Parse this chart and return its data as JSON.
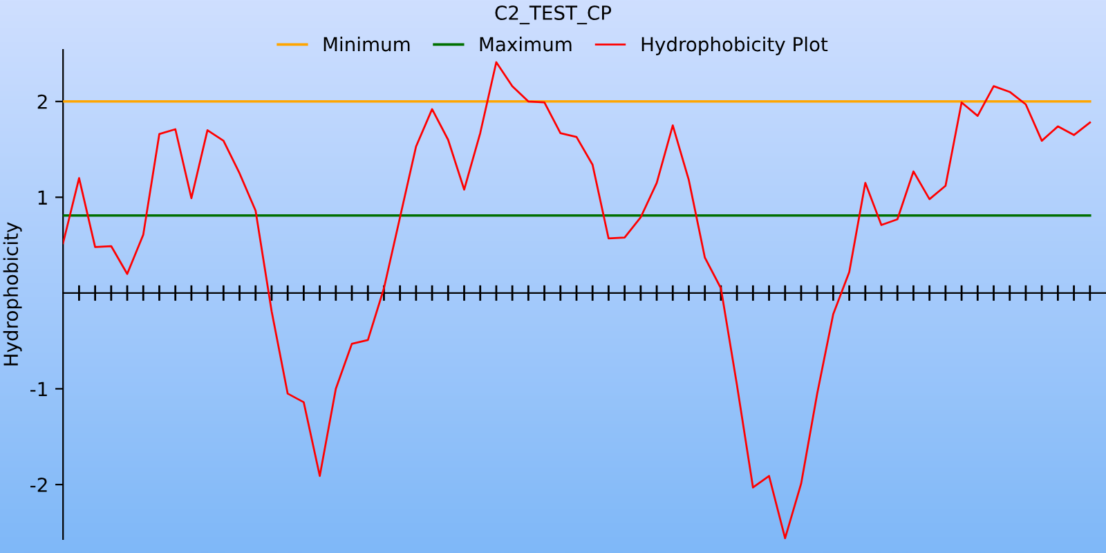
{
  "chart_data": {
    "type": "line",
    "title": "C2_TEST_CP",
    "ylabel": "Hydrophobicity",
    "categories": [
      null,
      null,
      null,
      null,
      null,
      null,
      null,
      null,
      null,
      null,
      null,
      null,
      null,
      null,
      null,
      null,
      null,
      null,
      null,
      null,
      null,
      null,
      null,
      null,
      null,
      null,
      null,
      null,
      null,
      null,
      null,
      null,
      null,
      null,
      null,
      null,
      null,
      null,
      null,
      null,
      null,
      null,
      null,
      null,
      null,
      null,
      null,
      null,
      null,
      null,
      null,
      null,
      null,
      null,
      null,
      null,
      null,
      null,
      null,
      null,
      null,
      null,
      null,
      null,
      null
    ],
    "series": [
      {
        "name": "Minimum",
        "color": "#ffa500",
        "values": [
          2,
          2,
          2,
          2,
          2,
          2,
          2,
          2,
          2,
          2,
          2,
          2,
          2,
          2,
          2,
          2,
          2,
          2,
          2,
          2,
          2,
          2,
          2,
          2,
          2,
          2,
          2,
          2,
          2,
          2,
          2,
          2,
          2,
          2,
          2,
          2,
          2,
          2,
          2,
          2,
          2,
          2,
          2,
          2,
          2,
          2,
          2,
          2,
          2,
          2,
          2,
          2,
          2,
          2,
          2,
          2,
          2,
          2,
          2,
          2,
          2,
          2,
          2,
          2,
          2
        ]
      },
      {
        "name": "Maximum",
        "color": "#007000",
        "values": [
          0.81,
          0.81,
          0.81,
          0.81,
          0.81,
          0.81,
          0.81,
          0.81,
          0.81,
          0.81,
          0.81,
          0.81,
          0.81,
          0.81,
          0.81,
          0.81,
          0.81,
          0.81,
          0.81,
          0.81,
          0.81,
          0.81,
          0.81,
          0.81,
          0.81,
          0.81,
          0.81,
          0.81,
          0.81,
          0.81,
          0.81,
          0.81,
          0.81,
          0.81,
          0.81,
          0.81,
          0.81,
          0.81,
          0.81,
          0.81,
          0.81,
          0.81,
          0.81,
          0.81,
          0.81,
          0.81,
          0.81,
          0.81,
          0.81,
          0.81,
          0.81,
          0.81,
          0.81,
          0.81,
          0.81,
          0.81,
          0.81,
          0.81,
          0.81,
          0.81,
          0.81,
          0.81,
          0.81,
          0.81,
          0.81
        ]
      },
      {
        "name": "Hydrophobicity Plot",
        "color": "#ff0000",
        "values": [
          0.52,
          1.2,
          0.48,
          0.49,
          0.2,
          0.61,
          1.66,
          1.71,
          0.99,
          1.7,
          1.59,
          1.25,
          0.86,
          -0.19,
          -1.05,
          -1.14,
          -1.91,
          -1.0,
          -0.53,
          -0.49,
          0.05,
          0.79,
          1.53,
          1.92,
          1.6,
          1.08,
          1.67,
          2.41,
          2.16,
          2.0,
          1.99,
          1.67,
          1.63,
          1.34,
          0.57,
          0.58,
          0.79,
          1.15,
          1.75,
          1.18,
          0.37,
          0.05,
          -0.96,
          -2.03,
          -1.91,
          -2.56,
          -1.99,
          -1.05,
          -0.22,
          0.22,
          1.15,
          0.71,
          0.77,
          1.27,
          0.98,
          1.12,
          1.99,
          1.85,
          2.16,
          2.1,
          1.97,
          1.59,
          1.74,
          1.65,
          1.78
        ]
      }
    ],
    "ylim": [
      -2.57,
      2.54
    ],
    "yticks": [
      -2,
      -1,
      1,
      2
    ],
    "grid": false,
    "legend": "top",
    "marker": "none",
    "line_style": "solid"
  }
}
